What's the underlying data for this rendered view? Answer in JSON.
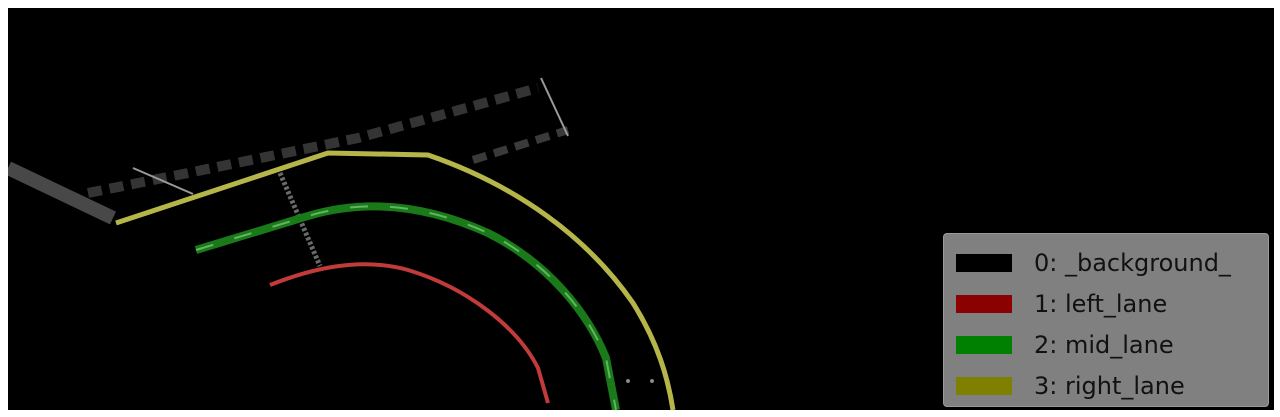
{
  "legend": {
    "items": [
      {
        "label": "0: _background_",
        "color": "#000000"
      },
      {
        "label": "1: left_lane",
        "color": "#8b0000"
      },
      {
        "label": "2: mid_lane",
        "color": "#008000"
      },
      {
        "label": "3: right_lane",
        "color": "#808000"
      }
    ]
  },
  "colors": {
    "background": "#000000",
    "left_lane": "#c23b3b",
    "mid_lane": "#1a7a1a",
    "right_lane": "#b5b54a"
  }
}
